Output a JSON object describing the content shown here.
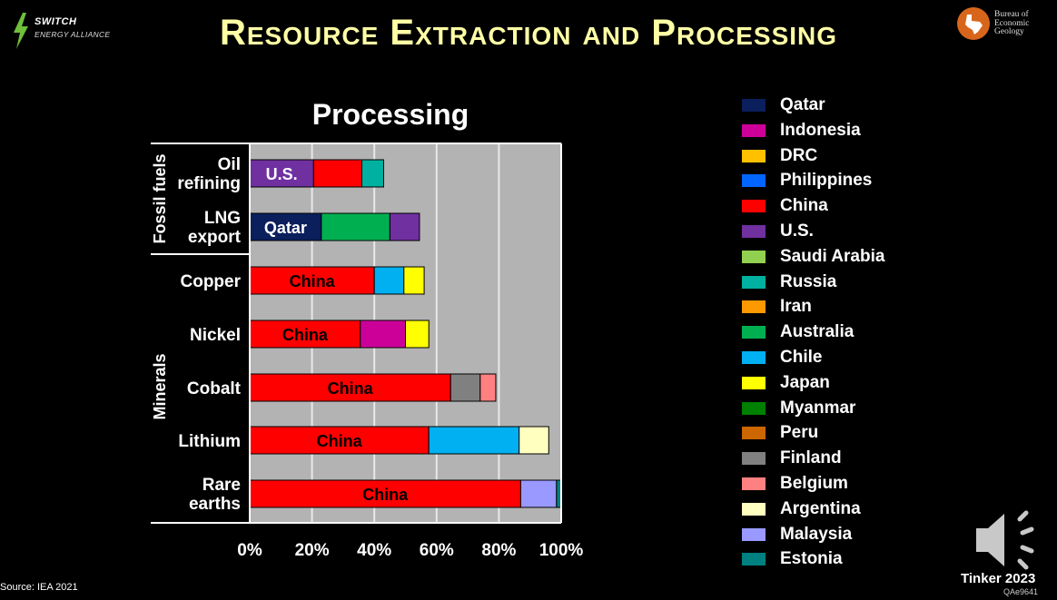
{
  "slide": {
    "title": "Resource Extraction and Processing",
    "brand_left_line1": "SWITCH",
    "brand_left_line2": "ENERGY ALLIANCE",
    "brand_right_line1": "Bureau of",
    "brand_right_line2": "Economic",
    "brand_right_line3": "Geology",
    "source": "Source: IEA 2021",
    "credit": "Tinker 2023",
    "code": "QAe9641"
  },
  "chart_data": {
    "type": "bar",
    "orientation": "horizontal",
    "stacked": true,
    "title": "Processing",
    "xlim": [
      0,
      100
    ],
    "x_ticks": [
      "0%",
      "20%",
      "40%",
      "60%",
      "80%",
      "100%"
    ],
    "groups": [
      {
        "name": "Fossil fuels",
        "categories": [
          "Oil refining",
          "LNG export"
        ]
      },
      {
        "name": "Minerals",
        "categories": [
          "Copper",
          "Nickel",
          "Cobalt",
          "Lithium",
          "Rare earths"
        ]
      }
    ],
    "rows": [
      {
        "category": "Oil refining",
        "segments": [
          {
            "country": "U.S.",
            "value": 20.5,
            "label": "U.S."
          },
          {
            "country": "China",
            "value": 15.5
          },
          {
            "country": "Russia",
            "value": 7
          }
        ]
      },
      {
        "category": "LNG export",
        "segments": [
          {
            "country": "Qatar",
            "value": 23,
            "label": "Qatar"
          },
          {
            "country": "Australia",
            "value": 22
          },
          {
            "country": "U.S.",
            "value": 9.5
          }
        ]
      },
      {
        "category": "Copper",
        "segments": [
          {
            "country": "China",
            "value": 40,
            "label": "China"
          },
          {
            "country": "Chile",
            "value": 9.5
          },
          {
            "country": "Japan",
            "value": 6.5
          }
        ]
      },
      {
        "category": "Nickel",
        "segments": [
          {
            "country": "China",
            "value": 35.5,
            "label": "China"
          },
          {
            "country": "Indonesia",
            "value": 14.5
          },
          {
            "country": "Japan",
            "value": 7.5
          }
        ]
      },
      {
        "category": "Cobalt",
        "segments": [
          {
            "country": "China",
            "value": 64.5,
            "label": "China"
          },
          {
            "country": "Finland",
            "value": 9.5
          },
          {
            "country": "Belgium",
            "value": 5
          }
        ]
      },
      {
        "category": "Lithium",
        "segments": [
          {
            "country": "China",
            "value": 57.5,
            "label": "China"
          },
          {
            "country": "Chile",
            "value": 29
          },
          {
            "country": "Argentina",
            "value": 9.5
          }
        ]
      },
      {
        "category": "Rare earths",
        "segments": [
          {
            "country": "China",
            "value": 87,
            "label": "China"
          },
          {
            "country": "Malaysia",
            "value": 11.5
          },
          {
            "country": "Estonia",
            "value": 1.5
          }
        ]
      }
    ],
    "legend": [
      {
        "name": "Qatar",
        "color": "#0a1f5c"
      },
      {
        "name": "Indonesia",
        "color": "#cc0099"
      },
      {
        "name": "DRC",
        "color": "#ffc000"
      },
      {
        "name": "Philippines",
        "color": "#0066ff"
      },
      {
        "name": "China",
        "color": "#ff0000"
      },
      {
        "name": "U.S.",
        "color": "#7030a0"
      },
      {
        "name": "Saudi Arabia",
        "color": "#92d050"
      },
      {
        "name": "Russia",
        "color": "#00b0a0"
      },
      {
        "name": "Iran",
        "color": "#ff9900"
      },
      {
        "name": "Australia",
        "color": "#00b050"
      },
      {
        "name": "Chile",
        "color": "#00b0f0"
      },
      {
        "name": "Japan",
        "color": "#ffff00"
      },
      {
        "name": "Myanmar",
        "color": "#008000"
      },
      {
        "name": "Peru",
        "color": "#cc6600"
      },
      {
        "name": "Finland",
        "color": "#808080"
      },
      {
        "name": "Belgium",
        "color": "#ff8080"
      },
      {
        "name": "Argentina",
        "color": "#ffffc0"
      },
      {
        "name": "Malaysia",
        "color": "#9999ff"
      },
      {
        "name": "Estonia",
        "color": "#008080"
      }
    ],
    "legend_placement": "right",
    "plot_background": "#b3b3b3",
    "grid": true
  }
}
